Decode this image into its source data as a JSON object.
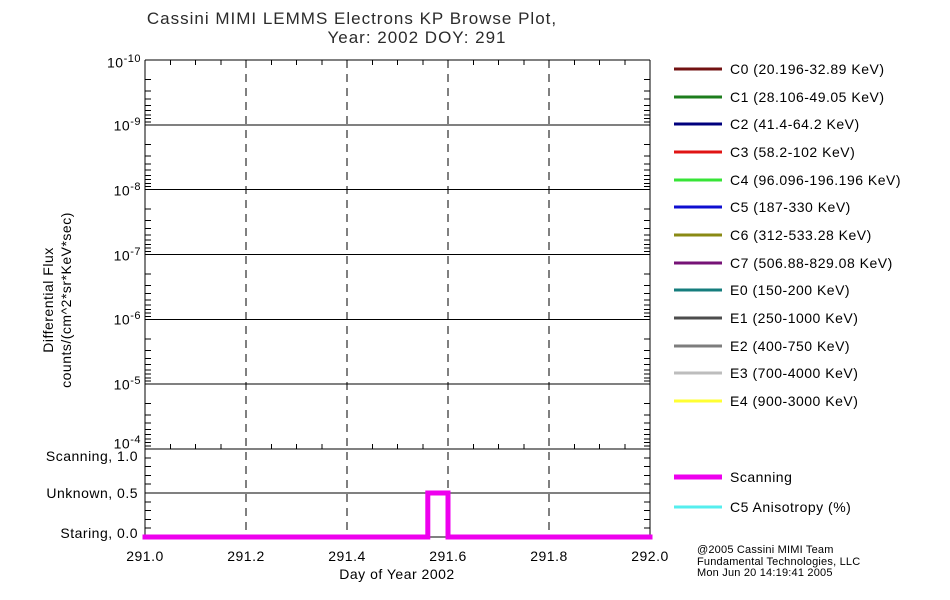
{
  "title": {
    "line1": "Cassini MIMI LEMMS Electrons KP Browse Plot,",
    "line2": "Year: 2002 DOY: 291"
  },
  "y_axis": {
    "label_line1": "Differential Flux",
    "label_line2": "counts/(cm^2*sr*KeV*sec)",
    "tick_base": "10",
    "tick_exponents": [
      "-10",
      "-9",
      "-8",
      "-7",
      "-6",
      "-5",
      "-4"
    ]
  },
  "mode_axis": {
    "labels": [
      "Scanning, 1.0",
      "Unknown, 0.5",
      "Staring, 0.0"
    ]
  },
  "x_axis": {
    "label": "Day of Year 2002",
    "ticks": [
      "291.0",
      "291.2",
      "291.4",
      "291.6",
      "291.8",
      "292.0"
    ]
  },
  "legend": {
    "items": [
      {
        "label": "C0 (20.196-32.89 KeV)",
        "color": "#721212"
      },
      {
        "label": "C1 (28.106-49.05 KeV)",
        "color": "#1d7d1d"
      },
      {
        "label": "C2 (41.4-64.2 KeV)",
        "color": "#00007d"
      },
      {
        "label": "C3 (58.2-102 KeV)",
        "color": "#e01414"
      },
      {
        "label": "C4 (96.096-196.196 KeV)",
        "color": "#37e437"
      },
      {
        "label": "C5 (187-330 KeV)",
        "color": "#0f0fd0"
      },
      {
        "label": "C6 (312-533.28 KeV)",
        "color": "#8a8a14"
      },
      {
        "label": "C7 (506.88-829.08 KeV)",
        "color": "#761276"
      },
      {
        "label": "E0 (150-200 KeV)",
        "color": "#157d7d"
      },
      {
        "label": "E1 (250-1000 KeV)",
        "color": "#4d4d4d"
      },
      {
        "label": "E2 (400-750 KeV)",
        "color": "#7d7d7d"
      },
      {
        "label": "E3 (700-4000 KeV)",
        "color": "#bdbdbd"
      },
      {
        "label": "E4 (900-3000 KeV)",
        "color": "#ffff33"
      }
    ]
  },
  "mode_legend": {
    "items": [
      {
        "label": "Scanning",
        "color": "#ee00ee"
      },
      {
        "label": "C5 Anisotropy (%)",
        "color": "#55eeee"
      }
    ]
  },
  "credit": {
    "line1": "@2005 Cassini MIMI Team",
    "line2": "Fundamental Technologies, LLC",
    "line3": "Mon Jun 20 14:19:41 2005"
  },
  "chart_data": {
    "type": "line",
    "title": "Cassini MIMI LEMMS Electrons KP Browse Plot, Year: 2002 DOY: 291",
    "xlabel": "Day of Year 2002",
    "x_range": [
      291.0,
      292.0
    ],
    "x_tick_step": 0.2,
    "x_minor_tick_step": 0.05,
    "grid": {
      "x_gridlines": "dashed",
      "y_gridlines": "solid"
    },
    "panels": [
      {
        "name": "differential-flux",
        "ylabel": "Differential Flux counts/(cm^2*sr*KeV*sec)",
        "y_scale": "log",
        "y_tick_values_top_to_bottom": [
          "1e-10",
          "1e-9",
          "1e-8",
          "1e-7",
          "1e-6",
          "1e-5",
          "1e-4"
        ],
        "series": []
      },
      {
        "name": "pointing-mode",
        "y_ticks": [
          {
            "label": "Scanning",
            "value": 1.0
          },
          {
            "label": "Unknown",
            "value": 0.5
          },
          {
            "label": "Staring",
            "value": 0.0
          }
        ],
        "series": [
          {
            "name": "Scanning",
            "color": "#ee00ee",
            "points": [
              [
                291.0,
                0.0
              ],
              [
                291.56,
                0.0
              ],
              [
                291.56,
                0.5
              ],
              [
                291.6,
                0.5
              ],
              [
                291.6,
                0.0
              ],
              [
                292.0,
                0.0
              ]
            ]
          }
        ]
      }
    ]
  }
}
